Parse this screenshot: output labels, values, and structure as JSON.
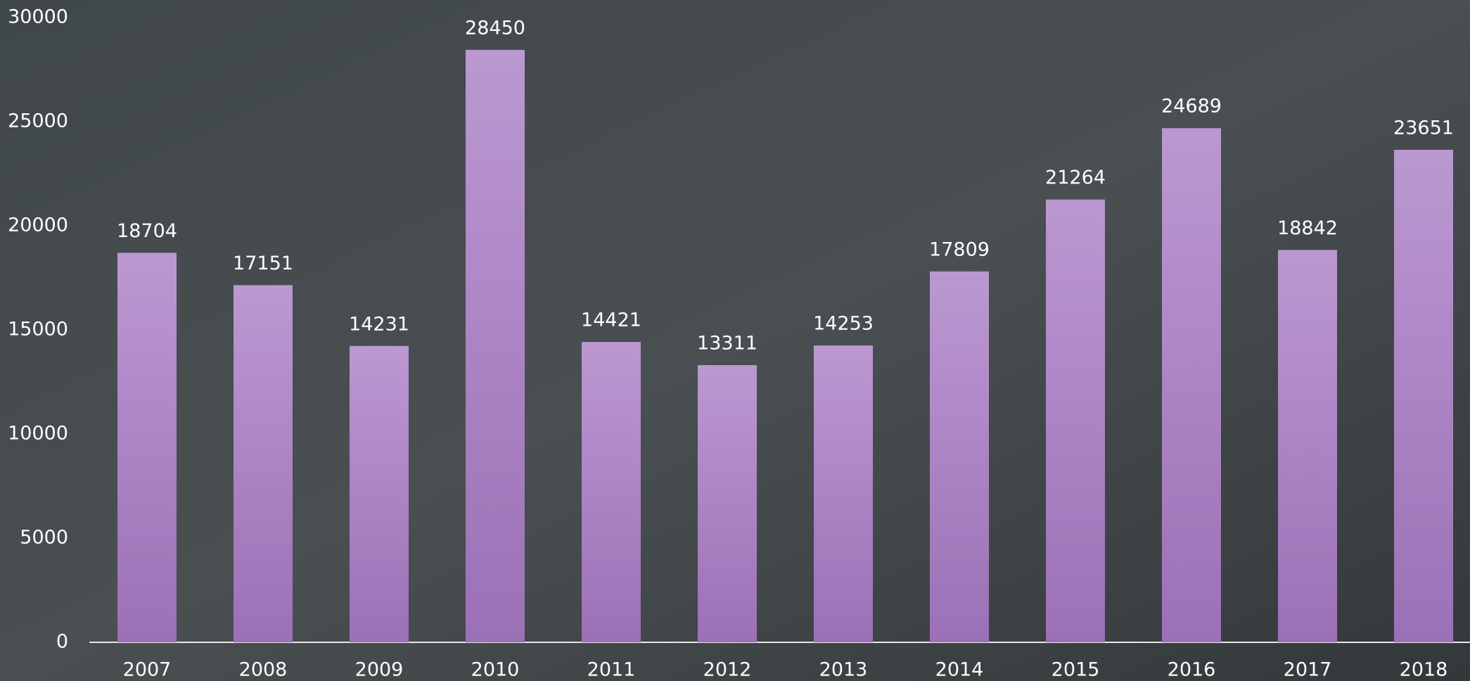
{
  "chart_data": {
    "type": "bar",
    "categories": [
      "2007",
      "2008",
      "2009",
      "2010",
      "2011",
      "2012",
      "2013",
      "2014",
      "2015",
      "2016",
      "2017",
      "2018"
    ],
    "values": [
      18704,
      17151,
      14231,
      28450,
      14421,
      13311,
      14253,
      17809,
      21264,
      24689,
      18842,
      23651
    ],
    "color": "#ab80c4",
    "ylim": [
      0,
      30000
    ],
    "yticks": [
      0,
      5000,
      10000,
      15000,
      20000,
      25000,
      30000
    ],
    "grid": false
  }
}
